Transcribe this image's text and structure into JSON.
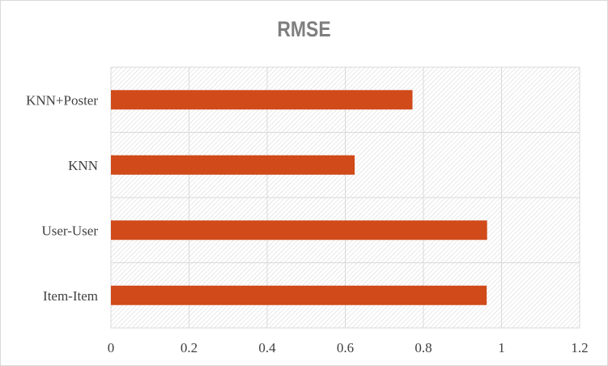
{
  "chart_data": {
    "type": "bar",
    "orientation": "horizontal",
    "title": "RMSE",
    "categories": [
      "Item-Item",
      "User-User",
      "KNN",
      "KNN+Poster"
    ],
    "values": [
      0.962,
      0.963,
      0.624,
      0.772
    ],
    "xlabel": "",
    "ylabel": "",
    "xlim": [
      0,
      1.2
    ],
    "xticks": [
      "0",
      "0.2",
      "0.4",
      "0.6",
      "0.8",
      "1",
      "1.2"
    ],
    "grid": true,
    "legend": "none",
    "colors": {
      "bar": "#d04a1a",
      "title": "#7f7f7f",
      "grid": "#d9d9d9",
      "text": "#404040"
    }
  }
}
